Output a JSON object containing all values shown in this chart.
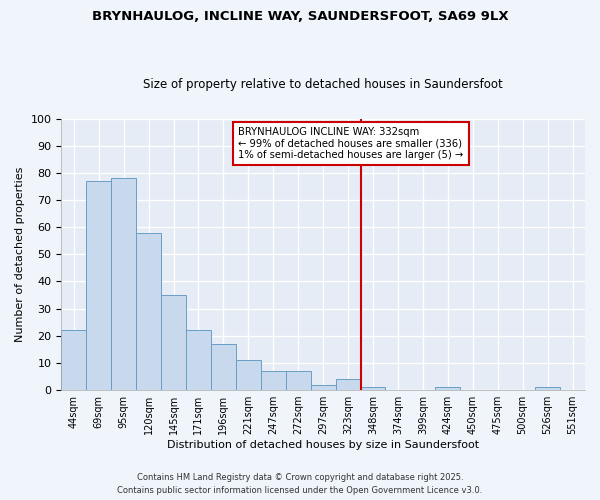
{
  "title": "BRYNHAULOG, INCLINE WAY, SAUNDERSFOOT, SA69 9LX",
  "subtitle": "Size of property relative to detached houses in Saundersfoot",
  "xlabel": "Distribution of detached houses by size in Saundersfoot",
  "ylabel": "Number of detached properties",
  "bar_labels": [
    "44sqm",
    "69sqm",
    "95sqm",
    "120sqm",
    "145sqm",
    "171sqm",
    "196sqm",
    "221sqm",
    "247sqm",
    "272sqm",
    "297sqm",
    "323sqm",
    "348sqm",
    "374sqm",
    "399sqm",
    "424sqm",
    "450sqm",
    "475sqm",
    "500sqm",
    "526sqm",
    "551sqm"
  ],
  "bar_values": [
    22,
    77,
    78,
    58,
    35,
    22,
    17,
    11,
    7,
    7,
    2,
    4,
    1,
    0,
    0,
    1,
    0,
    0,
    0,
    1,
    0
  ],
  "bar_color": "#c8d8ed",
  "bar_edge_color": "#6a9ec5",
  "fig_bg_color": "#f0f4fb",
  "ax_bg_color": "#e6ecf5",
  "grid_color": "#ffffff",
  "vline_x_index": 11.5,
  "vline_color": "#cc0000",
  "annotation_title": "BRYNHAULOG INCLINE WAY: 332sqm",
  "annotation_line1": "← 99% of detached houses are smaller (336)",
  "annotation_line2": "1% of semi-detached houses are larger (5) →",
  "annotation_box_edgecolor": "#cc0000",
  "ylim": [
    0,
    100
  ],
  "yticks": [
    0,
    10,
    20,
    30,
    40,
    50,
    60,
    70,
    80,
    90,
    100
  ],
  "footer1": "Contains HM Land Registry data © Crown copyright and database right 2025.",
  "footer2": "Contains public sector information licensed under the Open Government Licence v3.0."
}
